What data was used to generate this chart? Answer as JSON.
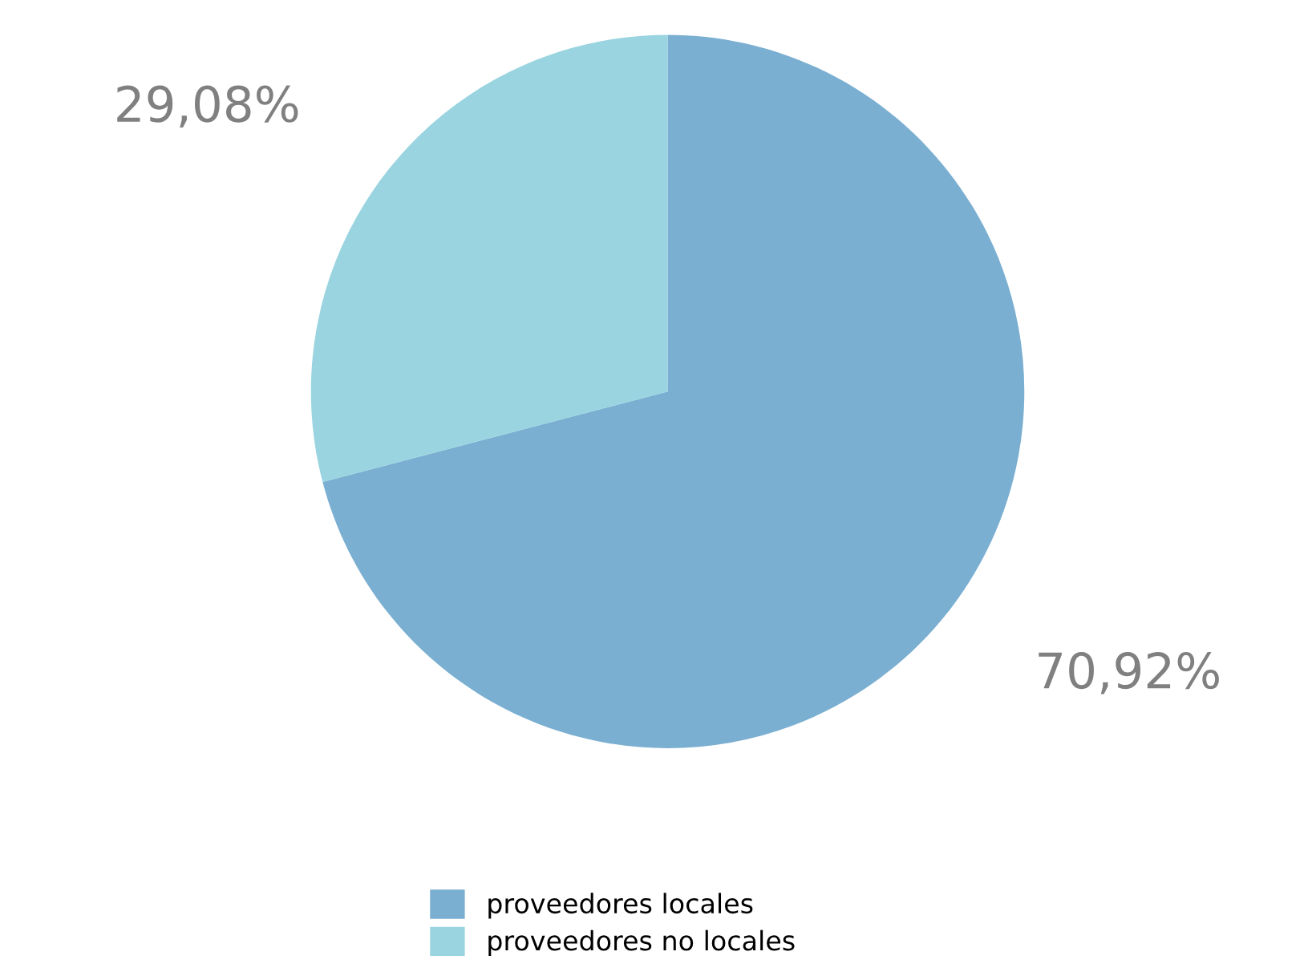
{
  "chart_data": {
    "type": "pie",
    "categories": [
      "proveedores locales",
      "proveedores no locales"
    ],
    "values": [
      70.92,
      29.08
    ],
    "colors": [
      "#7aafd2",
      "#9ad4e0"
    ],
    "value_labels": [
      "70,92%",
      "29,08%"
    ],
    "legend": "bottom"
  }
}
